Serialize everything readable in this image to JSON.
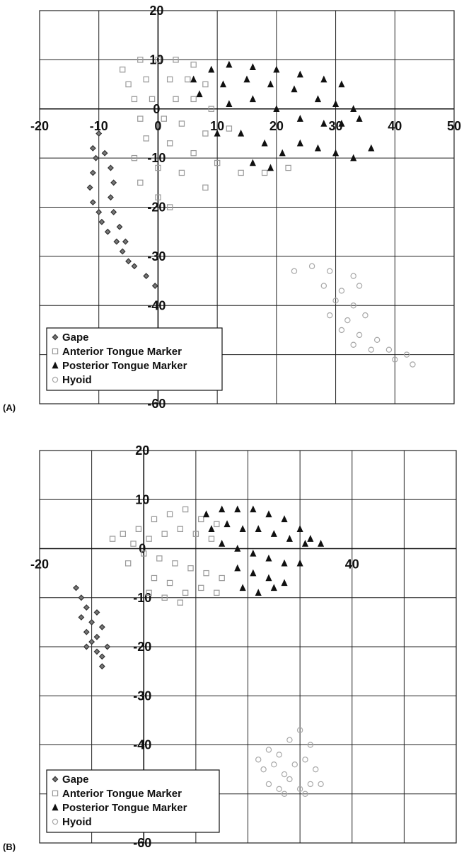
{
  "chart_data": [
    {
      "type": "scatter",
      "panel_label": "(A)",
      "xlim": [
        -20,
        50
      ],
      "ylim": [
        -60,
        20
      ],
      "x_ticks": [
        -20,
        -10,
        0,
        10,
        20,
        30,
        40,
        50
      ],
      "x_tick_labels": [
        "-20",
        "-10",
        "0",
        "10",
        "20",
        "30",
        "40",
        "50"
      ],
      "y_ticks": [
        20,
        10,
        0,
        -10,
        -20,
        -30,
        -40,
        -60
      ],
      "y_tick_labels": [
        "20",
        "10",
        "0",
        "-10",
        "-20",
        "-30",
        "-40",
        "-60"
      ],
      "grid": true,
      "legend_position": "bottom-left",
      "series": [
        {
          "name": "Gape",
          "marker": "diamond",
          "color": "#333333",
          "fill": "#777777",
          "points": [
            [
              -10,
              -5
            ],
            [
              -11,
              -8
            ],
            [
              -10.5,
              -10
            ],
            [
              -11,
              -13
            ],
            [
              -11.5,
              -16
            ],
            [
              -11,
              -19
            ],
            [
              -10,
              -21
            ],
            [
              -9.5,
              -23
            ],
            [
              -8.5,
              -25
            ],
            [
              -7,
              -27
            ],
            [
              -6,
              -29
            ],
            [
              -5,
              -31
            ],
            [
              -4,
              -32
            ],
            [
              -2,
              -34
            ],
            [
              -0.5,
              -36
            ],
            [
              -9,
              -9
            ],
            [
              -8,
              -12
            ],
            [
              -7.5,
              -15
            ],
            [
              -8,
              -18
            ],
            [
              -7.5,
              -21
            ],
            [
              -6.5,
              -24
            ],
            [
              -5.5,
              -27
            ]
          ]
        },
        {
          "name": "Anterior Tongue Marker",
          "marker": "square",
          "color": "#9a9a9a",
          "fill": "none",
          "points": [
            [
              -6,
              8
            ],
            [
              -3,
              10
            ],
            [
              0,
              10
            ],
            [
              3,
              10
            ],
            [
              6,
              9
            ],
            [
              -5,
              5
            ],
            [
              -2,
              6
            ],
            [
              2,
              6
            ],
            [
              5,
              6
            ],
            [
              8,
              5
            ],
            [
              -4,
              2
            ],
            [
              -1,
              2
            ],
            [
              3,
              2
            ],
            [
              6,
              2
            ],
            [
              9,
              0
            ],
            [
              -3,
              -2
            ],
            [
              1,
              -2
            ],
            [
              4,
              -3
            ],
            [
              8,
              -5
            ],
            [
              12,
              -4
            ],
            [
              -2,
              -6
            ],
            [
              2,
              -7
            ],
            [
              6,
              -9
            ],
            [
              10,
              -11
            ],
            [
              14,
              -13
            ],
            [
              18,
              -13
            ],
            [
              22,
              -12
            ],
            [
              -4,
              -10
            ],
            [
              0,
              -12
            ],
            [
              4,
              -13
            ],
            [
              8,
              -16
            ],
            [
              -3,
              -15
            ],
            [
              0,
              -18
            ],
            [
              2,
              -20
            ]
          ]
        },
        {
          "name": "Posterior Tongue Marker",
          "marker": "triangle",
          "color": "#111111",
          "fill": "#111111",
          "points": [
            [
              6,
              6
            ],
            [
              9,
              8
            ],
            [
              12,
              9
            ],
            [
              16,
              8.5
            ],
            [
              20,
              8
            ],
            [
              24,
              7
            ],
            [
              28,
              6
            ],
            [
              31,
              5
            ],
            [
              7,
              3
            ],
            [
              11,
              5
            ],
            [
              15,
              6
            ],
            [
              19,
              5
            ],
            [
              23,
              4
            ],
            [
              27,
              2
            ],
            [
              30,
              1
            ],
            [
              33,
              0
            ],
            [
              12,
              1
            ],
            [
              16,
              2
            ],
            [
              20,
              0
            ],
            [
              24,
              -2
            ],
            [
              28,
              -3
            ],
            [
              31,
              -3
            ],
            [
              34,
              -2
            ],
            [
              10,
              -5
            ],
            [
              14,
              -5
            ],
            [
              18,
              -7
            ],
            [
              21,
              -9
            ],
            [
              24,
              -7
            ],
            [
              27,
              -8
            ],
            [
              30,
              -9
            ],
            [
              33,
              -10
            ],
            [
              36,
              -8
            ],
            [
              16,
              -11
            ],
            [
              19,
              -12
            ]
          ]
        },
        {
          "name": "Hyoid",
          "marker": "circle",
          "color": "#a8a8a8",
          "fill": "none",
          "points": [
            [
              23,
              -33
            ],
            [
              26,
              -32
            ],
            [
              29,
              -33
            ],
            [
              33,
              -34
            ],
            [
              28,
              -36
            ],
            [
              31,
              -37
            ],
            [
              34,
              -36
            ],
            [
              30,
              -39
            ],
            [
              33,
              -40
            ],
            [
              29,
              -42
            ],
            [
              32,
              -43
            ],
            [
              35,
              -42
            ],
            [
              31,
              -45
            ],
            [
              34,
              -46
            ],
            [
              37,
              -47
            ],
            [
              33,
              -48
            ],
            [
              36,
              -49
            ],
            [
              39,
              -49
            ],
            [
              42,
              -50
            ],
            [
              43,
              -52
            ],
            [
              40,
              -51
            ]
          ]
        }
      ]
    },
    {
      "type": "scatter",
      "panel_label": "(B)",
      "xlim": [
        -20,
        60
      ],
      "ylim": [
        -60,
        20
      ],
      "x_ticks": [
        -20,
        40
      ],
      "x_tick_labels": [
        "-20",
        "40"
      ],
      "y_ticks": [
        20,
        10,
        0,
        -10,
        -20,
        -30,
        -40,
        -60
      ],
      "y_tick_labels": [
        "20",
        "10",
        "0",
        "-10",
        "-20",
        "-30",
        "-40",
        "-60"
      ],
      "grid": true,
      "legend_position": "bottom-left",
      "series": [
        {
          "name": "Gape",
          "marker": "diamond",
          "color": "#333333",
          "fill": "#777777",
          "points": [
            [
              -13,
              -8
            ],
            [
              -12,
              -10
            ],
            [
              -11,
              -12
            ],
            [
              -12,
              -14
            ],
            [
              -10,
              -15
            ],
            [
              -11,
              -17
            ],
            [
              -10,
              -19
            ],
            [
              -9,
              -21
            ],
            [
              -8,
              -22
            ],
            [
              -9,
              -18
            ],
            [
              -8,
              -16
            ],
            [
              -9,
              -13
            ],
            [
              -11,
              -20
            ],
            [
              -7,
              -20
            ],
            [
              -8,
              -24
            ]
          ]
        },
        {
          "name": "Anterior Tongue Marker",
          "marker": "square",
          "color": "#9a9a9a",
          "fill": "none",
          "points": [
            [
              -4,
              3
            ],
            [
              -1,
              4
            ],
            [
              2,
              6
            ],
            [
              5,
              7
            ],
            [
              8,
              8
            ],
            [
              11,
              6
            ],
            [
              14,
              5
            ],
            [
              -2,
              1
            ],
            [
              1,
              2
            ],
            [
              4,
              3
            ],
            [
              7,
              4
            ],
            [
              10,
              3
            ],
            [
              13,
              2
            ],
            [
              0,
              -1
            ],
            [
              3,
              -2
            ],
            [
              6,
              -3
            ],
            [
              9,
              -4
            ],
            [
              12,
              -5
            ],
            [
              15,
              -6
            ],
            [
              2,
              -6
            ],
            [
              5,
              -7
            ],
            [
              8,
              -9
            ],
            [
              11,
              -8
            ],
            [
              14,
              -9
            ],
            [
              1,
              -9
            ],
            [
              4,
              -10
            ],
            [
              7,
              -11
            ],
            [
              -6,
              2
            ],
            [
              -3,
              -3
            ]
          ]
        },
        {
          "name": "Posterior Tongue Marker",
          "marker": "triangle",
          "color": "#111111",
          "fill": "#111111",
          "points": [
            [
              12,
              7
            ],
            [
              15,
              8
            ],
            [
              18,
              8
            ],
            [
              21,
              8
            ],
            [
              24,
              7
            ],
            [
              27,
              6
            ],
            [
              30,
              4
            ],
            [
              32,
              2
            ],
            [
              34,
              1
            ],
            [
              13,
              4
            ],
            [
              16,
              5
            ],
            [
              19,
              4
            ],
            [
              22,
              4
            ],
            [
              25,
              3
            ],
            [
              28,
              2
            ],
            [
              31,
              1
            ],
            [
              15,
              1
            ],
            [
              18,
              0
            ],
            [
              21,
              -1
            ],
            [
              24,
              -2
            ],
            [
              27,
              -3
            ],
            [
              30,
              -3
            ],
            [
              18,
              -4
            ],
            [
              21,
              -5
            ],
            [
              24,
              -6
            ],
            [
              27,
              -7
            ],
            [
              19,
              -8
            ],
            [
              22,
              -9
            ],
            [
              25,
              -8
            ]
          ]
        },
        {
          "name": "Hyoid",
          "marker": "circle",
          "color": "#a8a8a8",
          "fill": "none",
          "points": [
            [
              22,
              -43
            ],
            [
              24,
              -41
            ],
            [
              26,
              -42
            ],
            [
              28,
              -39
            ],
            [
              30,
              -37
            ],
            [
              32,
              -40
            ],
            [
              23,
              -45
            ],
            [
              25,
              -44
            ],
            [
              27,
              -46
            ],
            [
              29,
              -44
            ],
            [
              31,
              -43
            ],
            [
              33,
              -45
            ],
            [
              24,
              -48
            ],
            [
              26,
              -49
            ],
            [
              28,
              -47
            ],
            [
              30,
              -49
            ],
            [
              32,
              -48
            ],
            [
              34,
              -48
            ],
            [
              27,
              -50
            ],
            [
              31,
              -50
            ]
          ]
        }
      ]
    }
  ]
}
